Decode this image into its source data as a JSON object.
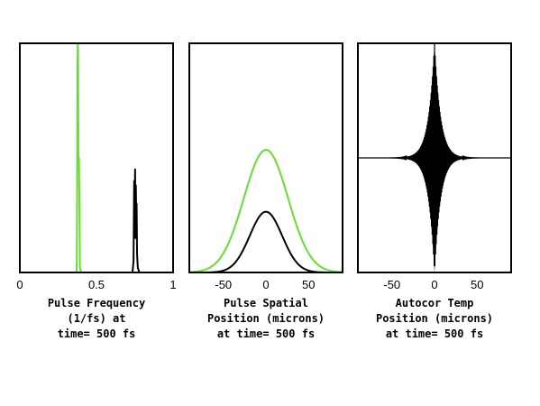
{
  "chart_data": [
    {
      "type": "line",
      "caption": [
        "Pulse Frequency",
        "(1/fs) at",
        "time= 500 fs"
      ],
      "xlim": [
        0,
        1
      ],
      "ylim": [
        0,
        1
      ],
      "xticks": [
        "0",
        "0.5",
        "1"
      ],
      "grid": false,
      "series": [
        {
          "color": "#66dd33",
          "x": [
            0.3,
            0.37,
            0.372,
            0.374,
            0.376,
            0.378,
            0.38,
            0.382,
            0.386,
            0.39,
            0.392,
            0.4,
            0.45,
            1.0
          ],
          "y": [
            0,
            0,
            0.05,
            0.4,
            0.9,
            1.0,
            0.97,
            0.5,
            0.5,
            0.2,
            0.02,
            0,
            0,
            0
          ]
        },
        {
          "color": "#000000",
          "x": [
            0.3,
            0.735,
            0.742,
            0.746,
            0.75,
            0.752,
            0.755,
            0.757,
            0.76,
            0.762,
            0.765,
            0.77,
            0.78,
            1.0
          ],
          "y": [
            0,
            0,
            0.05,
            0.4,
            0.2,
            0.45,
            0.15,
            0.38,
            0.22,
            0.3,
            0.08,
            0.02,
            0,
            0
          ]
        }
      ]
    },
    {
      "type": "line",
      "caption": [
        "Pulse Spatial",
        "Position (microns)",
        "at time= 500 fs"
      ],
      "xlim": [
        -90,
        90
      ],
      "ylim": [
        0,
        1
      ],
      "xticks": [
        "-50",
        "0",
        "50"
      ],
      "grid": false,
      "series": [
        {
          "color": "#66dd33",
          "gaussian": {
            "center": 0,
            "sigma": 26,
            "amplitude": 0.535,
            "from": -90,
            "to": 90
          }
        },
        {
          "color": "#000000",
          "gaussian": {
            "center": 0,
            "sigma": 19,
            "amplitude": 0.265,
            "from": -90,
            "to": 90
          }
        }
      ]
    },
    {
      "type": "line",
      "caption": [
        "Autocor Temp",
        "Position (microns)",
        "at time= 500 fs"
      ],
      "xlim": [
        -90,
        90
      ],
      "ylim": [
        -1,
        1
      ],
      "xticks": [
        "-50",
        "0",
        "50"
      ],
      "grid": false,
      "series": [
        {
          "color": "#000000",
          "oscillation": {
            "center": 0,
            "decay": 7,
            "period": 0.8,
            "amplitude": 1.0,
            "from": -90,
            "to": 90
          }
        }
      ]
    }
  ]
}
